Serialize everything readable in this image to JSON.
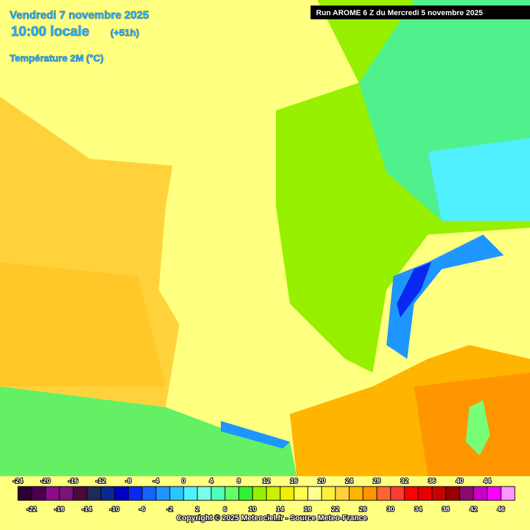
{
  "header": {
    "date": "Vendredi 7 novembre 2025",
    "time": "10:00 locale",
    "lead": "(+51h)",
    "variable": "Température 2M (°C)"
  },
  "run": "Run AROME 6 Z du Mercredi 5 novembre 2025",
  "copyright": "Copyright © 2025 Meteociel.fr - Source Meteo-France",
  "legend": {
    "ticks": [
      -24,
      -22,
      -20,
      -18,
      -16,
      -14,
      -12,
      -10,
      -8,
      -6,
      -4,
      -2,
      0,
      2,
      4,
      6,
      8,
      10,
      12,
      14,
      16,
      18,
      20,
      22,
      24,
      26,
      28,
      30,
      32,
      34,
      36,
      38,
      40,
      42,
      44,
      46
    ],
    "colors": [
      "#2d0032",
      "#4b0050",
      "#8c0a8c",
      "#78147a",
      "#4b0a3c",
      "#1e2a5a",
      "#0a2896",
      "#0000c8",
      "#0a28f0",
      "#1464ff",
      "#1e96ff",
      "#28c8ff",
      "#50f0ff",
      "#78ffe6",
      "#50ffb4",
      "#64ff64",
      "#32f032",
      "#96f000",
      "#c8f000",
      "#f0f000",
      "#ffff50",
      "#ffff96",
      "#fff03c",
      "#ffd23c",
      "#ffb400",
      "#ff9600",
      "#ff6432",
      "#ff3c32",
      "#ff0000",
      "#e60000",
      "#c80000",
      "#960000",
      "#8c0a6e",
      "#c800c8",
      "#ff00ff",
      "#ff96ff"
    ]
  }
}
